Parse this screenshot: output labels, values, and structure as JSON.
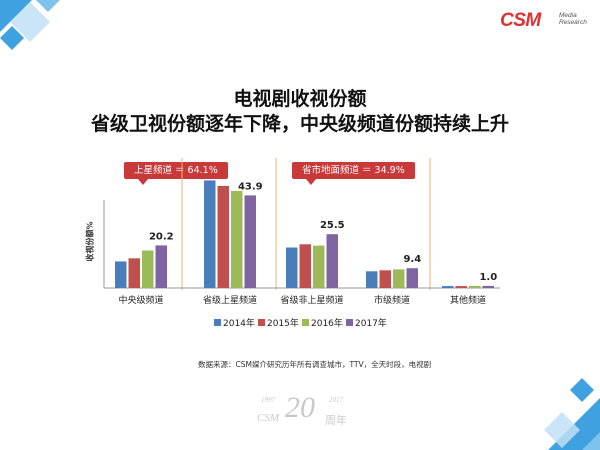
{
  "header": {
    "logo_main": "CSM",
    "logo_sub_1": "Media",
    "logo_sub_2": "Research"
  },
  "title": {
    "line1": "电视剧收视份额",
    "line2": "省级卫视份额逐年下降，中央级频道份额持续上升"
  },
  "callouts": {
    "satellite": "上星频道 ＝ 64.1%",
    "provincial": "省市地面频道 ＝ 34.9%"
  },
  "footer": {
    "source": "数据来源：CSM媒介研究历年所有调查城市，TTV，全天时段，电视剧",
    "anniv_years_left": "1997",
    "anniv_years_right": "2017",
    "anniv_number": "20",
    "anniv_brand": "CSM",
    "anniv_suffix": "周年"
  },
  "colors": {
    "accent_red": "#c9393a",
    "deco_blue": "#3fa1e0",
    "deco_light": "#bfe0f6"
  },
  "chart_data": {
    "type": "bar",
    "ylabel": "收视份额%",
    "categories": [
      "中央级频道",
      "省级上星频道",
      "省级非上星频道",
      "市级频道",
      "其他频道"
    ],
    "series": [
      {
        "name": "2014年",
        "color": "#4a7ebb",
        "values": [
          12.6,
          51.0,
          19.2,
          7.9,
          0.9
        ]
      },
      {
        "name": "2015年",
        "color": "#c0504d",
        "values": [
          14.1,
          48.4,
          20.7,
          8.4,
          0.9
        ]
      },
      {
        "name": "2016年",
        "color": "#9bbb59",
        "values": [
          17.8,
          46.0,
          20.1,
          8.8,
          1.0
        ]
      },
      {
        "name": "2017年",
        "color": "#8064a2",
        "values": [
          20.2,
          43.9,
          25.5,
          9.4,
          1.0
        ]
      }
    ],
    "data_labels": [
      "20.2",
      "43.9",
      "25.5",
      "9.4",
      "1.0"
    ],
    "ylim": [
      0,
      55
    ],
    "grid": false,
    "legend_position": "bottom"
  }
}
